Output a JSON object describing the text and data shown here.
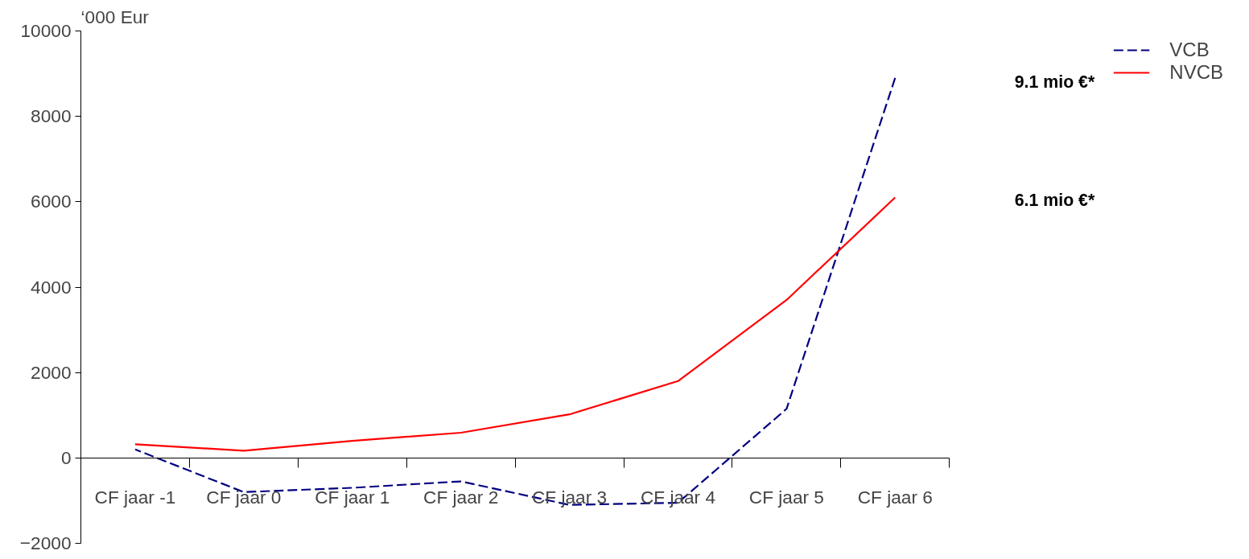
{
  "chart_data": {
    "type": "line",
    "ylabel": "‘000 Eur",
    "categories": [
      "CF jaar -1",
      "CF jaar 0",
      "CF jaar 1",
      "CF jaar 2",
      "CF jaar 3",
      "CF jaar 4",
      "CF jaar 5",
      "CF jaar 6"
    ],
    "series": [
      {
        "name": "VCB",
        "color": "#000080",
        "line_style": "dashed",
        "values": [
          200,
          -800,
          -700,
          -550,
          -1100,
          -1050,
          1150,
          8900
        ]
      },
      {
        "name": "NVCB",
        "color": "#ff0000",
        "line_style": "solid",
        "values": [
          320,
          170,
          400,
          590,
          1020,
          1800,
          3700,
          6100
        ]
      }
    ],
    "ylim": [
      -2000,
      10000
    ],
    "yticks": [
      -2000,
      0,
      2000,
      4000,
      6000,
      8000,
      10000
    ],
    "grid": false,
    "legend": "top right",
    "marker": "none",
    "annotations": [
      "9.1 mio €*",
      "6.1 mio €*"
    ]
  }
}
